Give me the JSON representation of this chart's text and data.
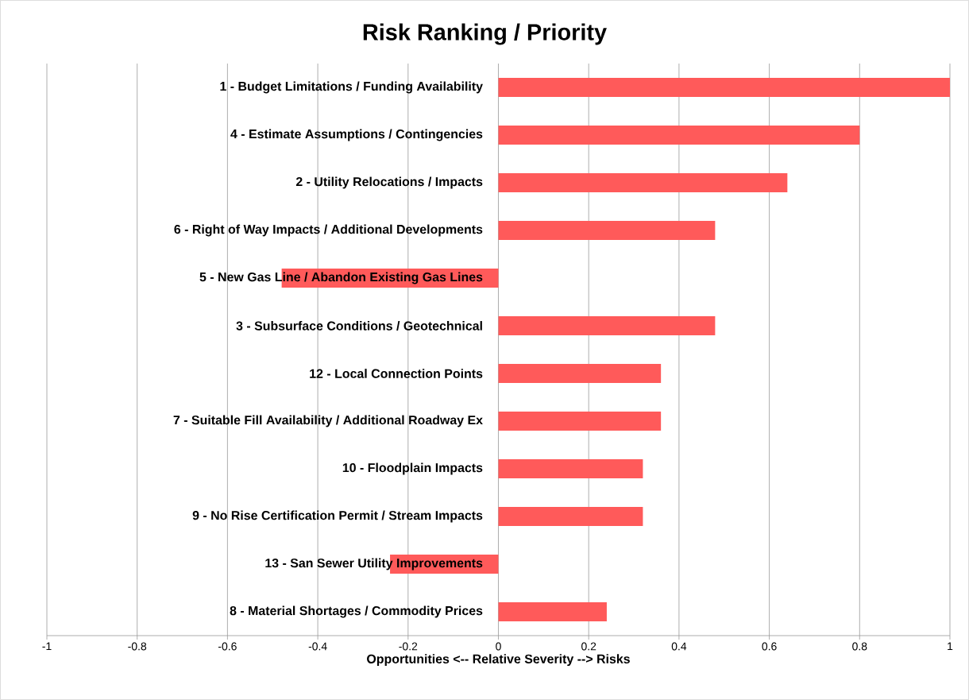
{
  "chart_data": {
    "type": "bar",
    "orientation": "horizontal",
    "title": "Risk Ranking / Priority",
    "xlabel": "Opportunities <-- Relative Severity --> Risks",
    "categories": [
      "1 - Budget Limitations / Funding Availability",
      "4 - Estimate Assumptions / Contingencies",
      "2 - Utility Relocations / Impacts",
      "6 - Right of Way Impacts / Additional Developments",
      "5 - New Gas Line / Abandon Existing Gas Lines",
      "3 - Subsurface Conditions / Geotechnical",
      "12 - Local Connection Points",
      "7 - Suitable Fill Availability / Additional Roadway Ex",
      "10 - Floodplain Impacts",
      "9 - No Rise Certification Permit / Stream Impacts",
      "13 - San Sewer Utility Improvements",
      "8 - Material Shortages / Commodity Prices"
    ],
    "values": [
      1,
      0.8,
      0.64,
      0.48,
      -0.48,
      0.48,
      0.36,
      0.36,
      0.32,
      0.32,
      -0.24,
      0.24
    ],
    "color": "#ff5a5a",
    "xlim": [
      -1,
      1
    ],
    "xticks": [
      -1,
      -0.8,
      -0.6,
      -0.4,
      -0.2,
      0,
      0.2,
      0.4,
      0.6,
      0.8,
      1
    ],
    "grid": "x"
  }
}
